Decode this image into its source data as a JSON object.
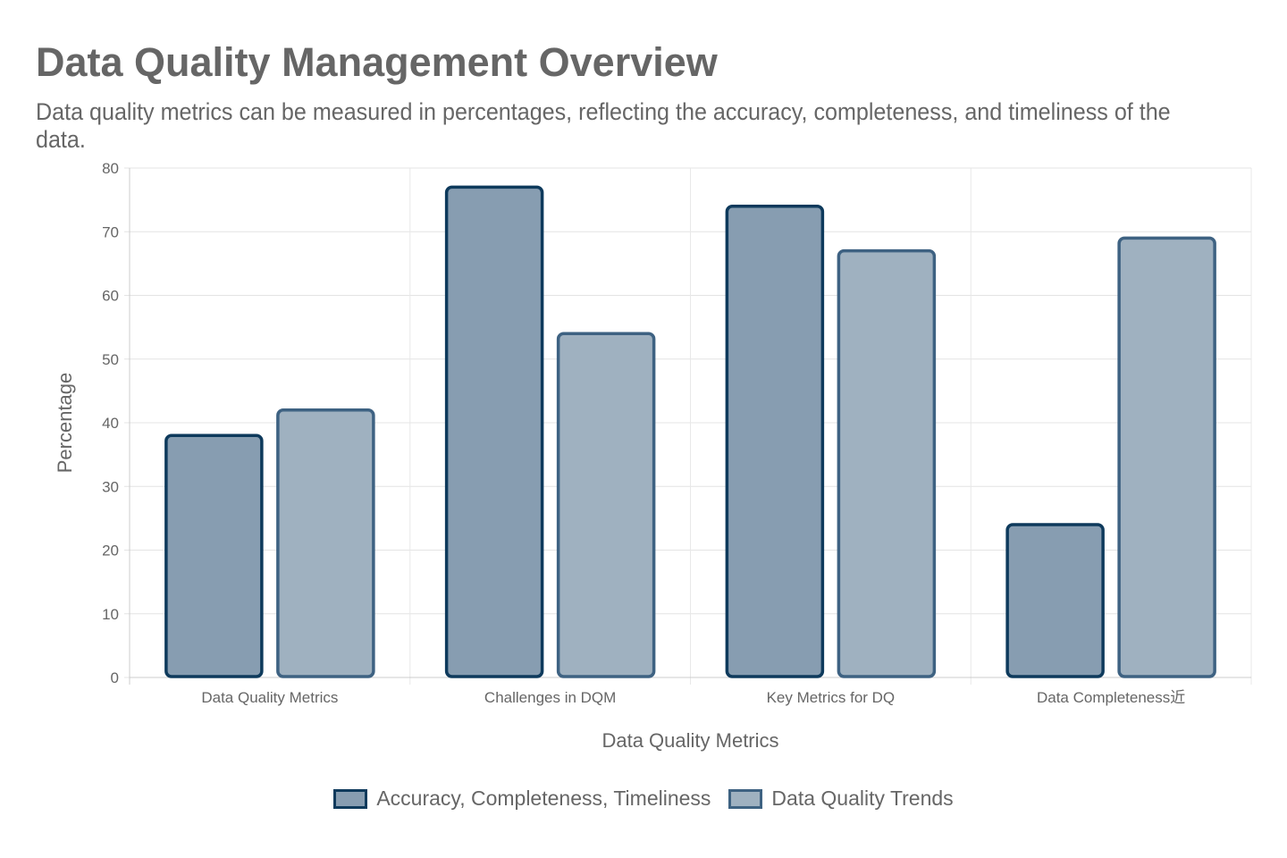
{
  "title": "Data Quality Management Overview",
  "subtitle": "Data quality metrics can be measured in percentages, reflecting the accuracy, completeness, and timeliness of the data.",
  "chart_data": {
    "type": "bar",
    "categories": [
      "Data Quality Metrics",
      "Challenges in DQM",
      "Key Metrics for DQ",
      "Data Completeness近"
    ],
    "series": [
      {
        "name": "Accuracy, Completeness, Timeliness",
        "values": [
          38,
          77,
          74,
          24
        ],
        "fill": "#879db1",
        "border": "#0e3a5c"
      },
      {
        "name": "Data Quality Trends",
        "values": [
          42,
          54,
          67,
          69
        ],
        "fill": "#9fb1c0",
        "border": "#3e6282"
      }
    ],
    "xlabel": "Data Quality Metrics",
    "ylabel": "Percentage",
    "ylim": [
      0,
      80
    ],
    "yticks": [
      0,
      10,
      20,
      30,
      40,
      50,
      60,
      70,
      80
    ],
    "grid": true,
    "legend": "bottom"
  }
}
